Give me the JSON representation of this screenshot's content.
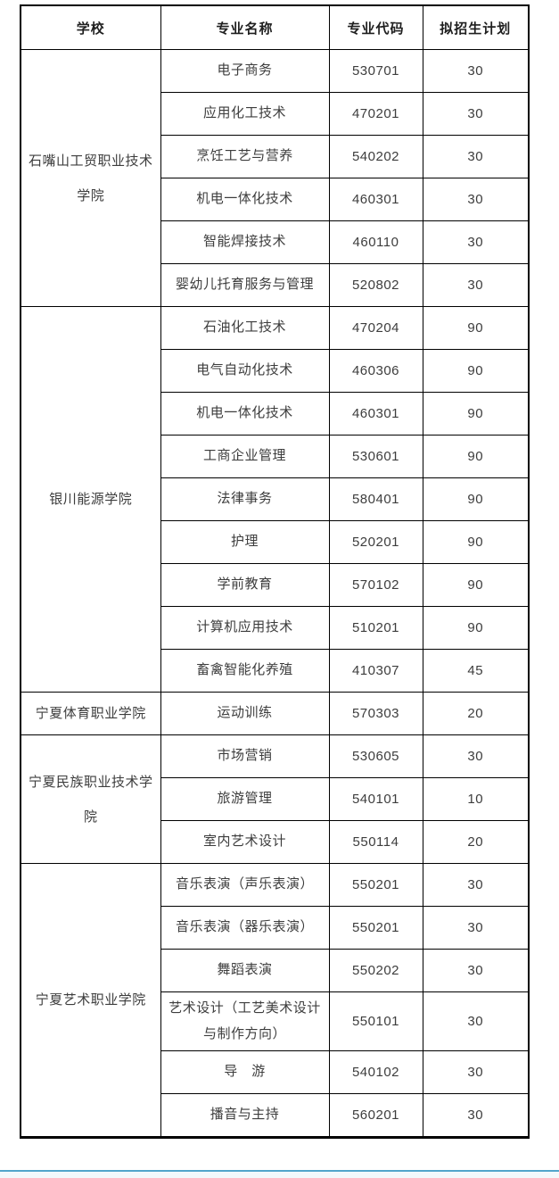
{
  "page": {
    "accent_line_color": "#52a5cb"
  },
  "table": {
    "headers": [
      "学校",
      "专业名称",
      "专业代码",
      "拟招生计划"
    ],
    "groups": [
      {
        "school": "石嘴山工贸职业技术学院",
        "majors": [
          {
            "name": "电子商务",
            "code": "530701",
            "plan": "30"
          },
          {
            "name": "应用化工技术",
            "code": "470201",
            "plan": "30"
          },
          {
            "name": "烹饪工艺与营养",
            "code": "540202",
            "plan": "30"
          },
          {
            "name": "机电一体化技术",
            "code": "460301",
            "plan": "30"
          },
          {
            "name": "智能焊接技术",
            "code": "460110",
            "plan": "30"
          },
          {
            "name": "婴幼儿托育服务与管理",
            "code": "520802",
            "plan": "30"
          }
        ]
      },
      {
        "school": "银川能源学院",
        "majors": [
          {
            "name": "石油化工技术",
            "code": "470204",
            "plan": "90"
          },
          {
            "name": "电气自动化技术",
            "code": "460306",
            "plan": "90"
          },
          {
            "name": "机电一体化技术",
            "code": "460301",
            "plan": "90"
          },
          {
            "name": "工商企业管理",
            "code": "530601",
            "plan": "90"
          },
          {
            "name": "法律事务",
            "code": "580401",
            "plan": "90"
          },
          {
            "name": "护理",
            "code": "520201",
            "plan": "90"
          },
          {
            "name": "学前教育",
            "code": "570102",
            "plan": "90"
          },
          {
            "name": "计算机应用技术",
            "code": "510201",
            "plan": "90"
          },
          {
            "name": "畜禽智能化养殖",
            "code": "410307",
            "plan": "45"
          }
        ]
      },
      {
        "school": "宁夏体育职业学院",
        "majors": [
          {
            "name": "运动训练",
            "code": "570303",
            "plan": "20"
          }
        ]
      },
      {
        "school": "宁夏民族职业技术学院",
        "majors": [
          {
            "name": "市场营销",
            "code": "530605",
            "plan": "30"
          },
          {
            "name": "旅游管理",
            "code": "540101",
            "plan": "10"
          },
          {
            "name": "室内艺术设计",
            "code": "550114",
            "plan": "20"
          }
        ]
      },
      {
        "school": "宁夏艺术职业学院",
        "majors": [
          {
            "name": "音乐表演（声乐表演）",
            "code": "550201",
            "plan": "30"
          },
          {
            "name": "音乐表演（器乐表演）",
            "code": "550201",
            "plan": "30"
          },
          {
            "name": "舞蹈表演",
            "code": "550202",
            "plan": "30"
          },
          {
            "name": "艺术设计（工艺美术设计与制作方向）",
            "code": "550101",
            "plan": "30"
          },
          {
            "name": "导　游",
            "code": "540102",
            "plan": "30"
          },
          {
            "name": "播音与主持",
            "code": "560201",
            "plan": "30"
          }
        ]
      }
    ]
  }
}
